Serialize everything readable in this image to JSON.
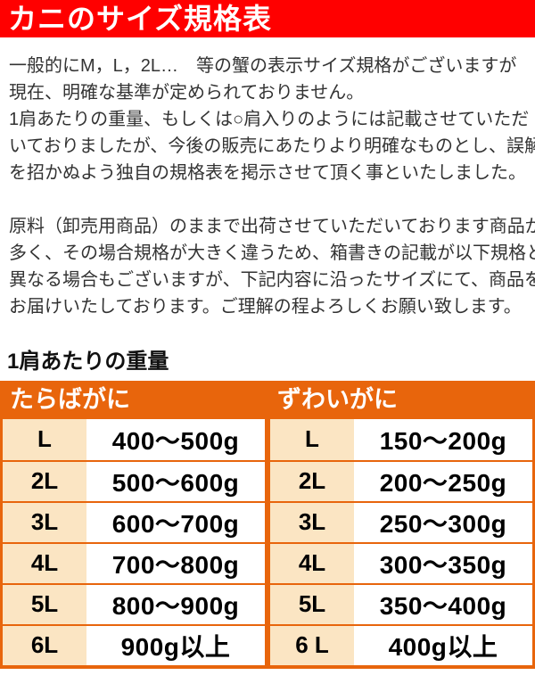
{
  "banner": {
    "title": "カニのサイズ規格表",
    "bg_color": "#ff0000",
    "text_color": "#ffffff"
  },
  "intro": {
    "p1": [
      "一般的にM，L，2L…　等の蟹の表示サイズ規格がございますが",
      "現在、明確な基準が定められておりません。",
      "1肩あたりの重量、もしくは○肩入りのようには記載させていただ",
      "いておりましたが、今後の販売にあたりより明確なものとし、誤解",
      "を招かぬよう独自の規格表を掲示させて頂く事といたしました。"
    ],
    "p2": [
      "原料（卸売用商品）のままで出荷させていただいております商品が",
      "多く、その場合規格が大きく違うため、箱書きの記載が以下規格と",
      "異なる場合もございますが、下記内容に沿ったサイズにて、商品を",
      "お届けいたしております。ご理解の程よろしくお願い致します。"
    ]
  },
  "weight_section": {
    "heading": "1肩あたりの重量",
    "accent_color": "#e8650c",
    "cell_bg_color": "#fbe5c3",
    "left": {
      "header": "たらばがに",
      "rows": [
        {
          "size": "L",
          "weight": "400～500g"
        },
        {
          "size": "2L",
          "weight": "500～600g"
        },
        {
          "size": "3L",
          "weight": "600～700g"
        },
        {
          "size": "4L",
          "weight": "700～800g"
        },
        {
          "size": "5L",
          "weight": "800～900g"
        },
        {
          "size": "6L",
          "weight": "900g以上"
        }
      ]
    },
    "right": {
      "header": "ずわいがに",
      "rows": [
        {
          "size": "L",
          "weight": "150～200g"
        },
        {
          "size": "2L",
          "weight": "200～250g"
        },
        {
          "size": "3L",
          "weight": "250～300g"
        },
        {
          "size": "4L",
          "weight": "300～350g"
        },
        {
          "size": "5L",
          "weight": "350～400g"
        },
        {
          "size": "6 L",
          "weight": "400g以上"
        }
      ]
    }
  }
}
